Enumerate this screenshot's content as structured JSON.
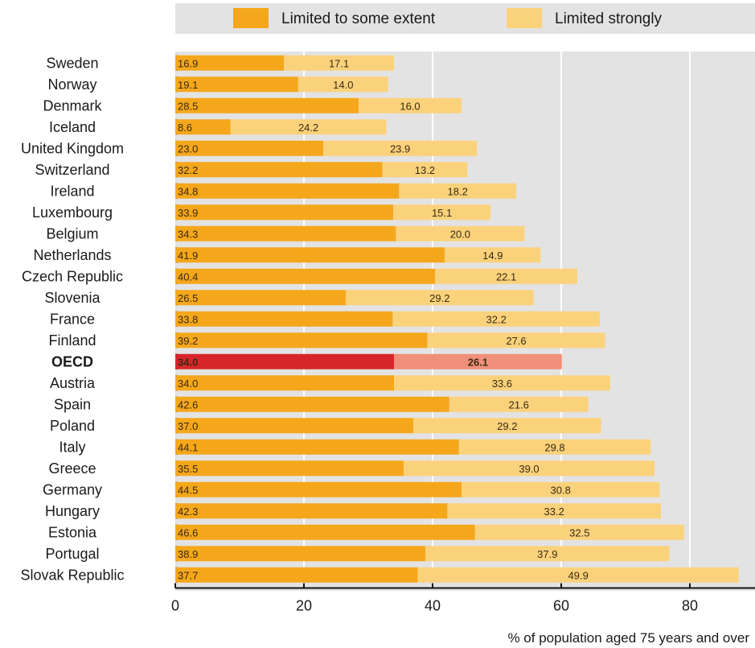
{
  "chart_data": {
    "type": "bar",
    "orientation": "horizontal",
    "stacked": true,
    "categories": [
      "Sweden",
      "Norway",
      "Denmark",
      "Iceland",
      "United Kingdom",
      "Switzerland",
      "Ireland",
      "Luxembourg",
      "Belgium",
      "Netherlands",
      "Czech Republic",
      "Slovenia",
      "France",
      "Finland",
      "OECD",
      "Austria",
      "Spain",
      "Poland",
      "Italy",
      "Greece",
      "Germany",
      "Hungary",
      "Estonia",
      "Portugal",
      "Slovak Republic"
    ],
    "highlight_category": "OECD",
    "series": [
      {
        "name": "Limited to some extent",
        "color": "#f5a71c",
        "highlight_color": "#d7262b",
        "values": [
          16.9,
          19.1,
          28.5,
          8.6,
          23.0,
          32.2,
          34.8,
          33.9,
          34.3,
          41.9,
          40.4,
          26.5,
          33.8,
          39.2,
          34.0,
          34.0,
          42.6,
          37.0,
          44.1,
          35.5,
          44.5,
          42.3,
          46.6,
          38.9,
          37.7
        ],
        "labels": [
          "16.9",
          "19.1",
          "28.5",
          "8.6",
          "23.0",
          "32.2",
          "34.8",
          "33.9",
          "34.3",
          "41.9",
          "40.4",
          "26.5",
          "33.8",
          "39.2",
          "34.0",
          "34.0",
          "42.6",
          "37.0",
          "44.1",
          "35.5",
          "44.5",
          "42.3",
          "46.6",
          "38.9",
          "37.7"
        ]
      },
      {
        "name": "Limited strongly",
        "color": "#fbd27c",
        "highlight_color": "#f0907a",
        "values": [
          17.1,
          14.0,
          16.0,
          24.2,
          23.9,
          13.2,
          18.2,
          15.1,
          20.0,
          14.9,
          22.1,
          29.2,
          32.2,
          27.6,
          26.1,
          33.6,
          21.6,
          29.2,
          29.8,
          39.0,
          30.8,
          33.2,
          32.5,
          37.9,
          49.9
        ],
        "labels": [
          "17.1",
          "14.0",
          "16.0",
          "24.2",
          "23.9",
          "13.2",
          "18.2",
          "15.1",
          "20.0",
          "14.9",
          "22.1",
          "29.2",
          "32.2",
          "27.6",
          "26.1",
          "33.6",
          "21.6",
          "29.2",
          "29.8",
          "39.0",
          "30.8",
          "33.2",
          "32.5",
          "37.9",
          "49.9"
        ]
      }
    ],
    "xlim": [
      0,
      90
    ],
    "xticks": [
      0,
      20,
      40,
      60,
      80
    ],
    "xtick_labels": [
      "0",
      "20",
      "40",
      "60",
      "80"
    ],
    "xlabel": "% of population aged 75 years and over",
    "ylabel": "",
    "title": "",
    "legend_position": "top",
    "grid": true,
    "plot_background": "#e3e3e3",
    "gridline_color": "#ffffff"
  }
}
